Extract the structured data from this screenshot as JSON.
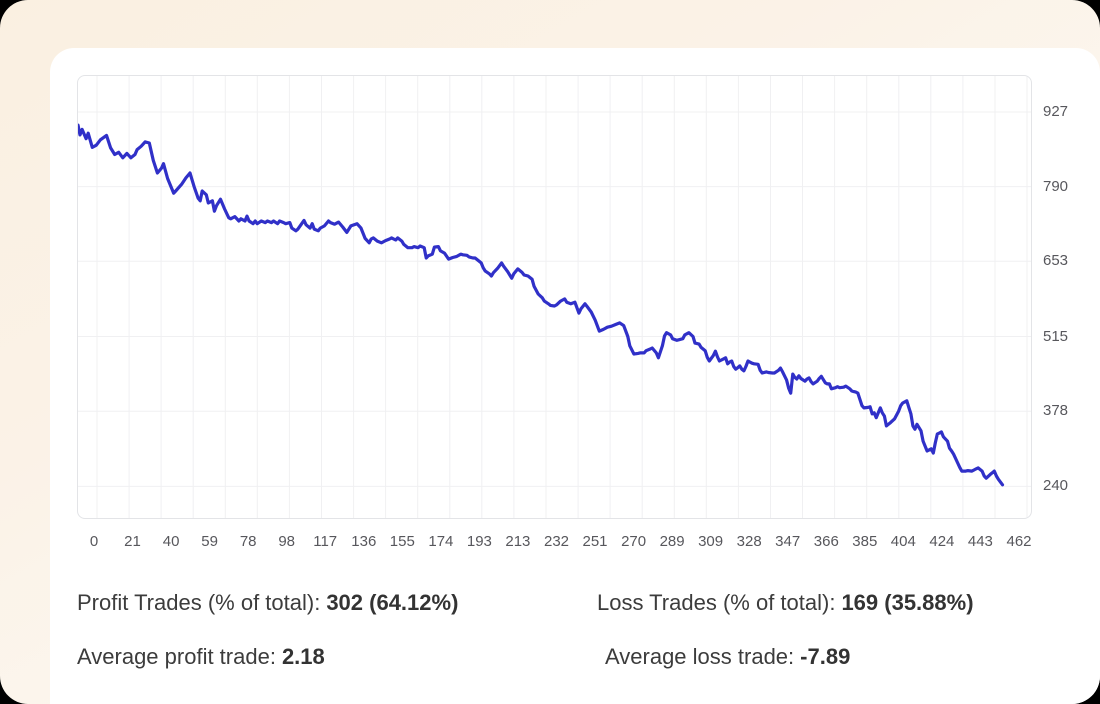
{
  "colors": {
    "line": "#3030c8",
    "grid": "#f0f0f2",
    "panel_border": "#e3e4e7",
    "tick_text": "#57575c",
    "stat_text": "#3c3c3c",
    "card": "#ffffff",
    "background_top": "#faf0e1",
    "background_bottom": "#fbfbf9"
  },
  "chart_data": {
    "type": "line",
    "title": "",
    "xlabel": "",
    "ylabel": "",
    "legend": "none",
    "grid": true,
    "y_labels_position": "right",
    "x_tick_labels": [
      "0",
      "21",
      "40",
      "59",
      "78",
      "98",
      "117",
      "136",
      "155",
      "174",
      "193",
      "213",
      "232",
      "251",
      "270",
      "289",
      "309",
      "328",
      "347",
      "366",
      "385",
      "404",
      "424",
      "443",
      "462"
    ],
    "y_tick_labels": [
      "927",
      "790",
      "653",
      "515",
      "378",
      "240"
    ],
    "y_tick_values": [
      927,
      790,
      653,
      515,
      378,
      240
    ],
    "axis": {
      "x_min": 0,
      "x_max": 468,
      "y_min": 182,
      "y_max": 993
    },
    "series": [
      {
        "name": "cumulative-balance",
        "color": "#3030c8",
        "points": [
          [
            0,
            903
          ],
          [
            1,
            885
          ],
          [
            2,
            895
          ],
          [
            4,
            878
          ],
          [
            5,
            888
          ],
          [
            7,
            862
          ],
          [
            9,
            866
          ],
          [
            11,
            876
          ],
          [
            14,
            884
          ],
          [
            16,
            861
          ],
          [
            18,
            849
          ],
          [
            20,
            853
          ],
          [
            22,
            843
          ],
          [
            24,
            851
          ],
          [
            26,
            843
          ],
          [
            28,
            849
          ],
          [
            29,
            858
          ],
          [
            31,
            864
          ],
          [
            33,
            872
          ],
          [
            35,
            870
          ],
          [
            37,
            838
          ],
          [
            39,
            815
          ],
          [
            41,
            824
          ],
          [
            42,
            832
          ],
          [
            44,
            805
          ],
          [
            47,
            778
          ],
          [
            48,
            782
          ],
          [
            51,
            795
          ],
          [
            53,
            806
          ],
          [
            55,
            815
          ],
          [
            57,
            790
          ],
          [
            59,
            769
          ],
          [
            60,
            764
          ],
          [
            61,
            782
          ],
          [
            63,
            775
          ],
          [
            64,
            760
          ],
          [
            66,
            764
          ],
          [
            67,
            745
          ],
          [
            68,
            755
          ],
          [
            70,
            767
          ],
          [
            72,
            749
          ],
          [
            74,
            733
          ],
          [
            75,
            731
          ],
          [
            77,
            735
          ],
          [
            79,
            727
          ],
          [
            80,
            731
          ],
          [
            82,
            727
          ],
          [
            83,
            736
          ],
          [
            84,
            727
          ],
          [
            86,
            722
          ],
          [
            87,
            727
          ],
          [
            88,
            722
          ],
          [
            90,
            727
          ],
          [
            92,
            724
          ],
          [
            93,
            727
          ],
          [
            95,
            724
          ],
          [
            96,
            727
          ],
          [
            98,
            722
          ],
          [
            99,
            727
          ],
          [
            101,
            724
          ],
          [
            102,
            722
          ],
          [
            104,
            724
          ],
          [
            105,
            714
          ],
          [
            107,
            709
          ],
          [
            108,
            712
          ],
          [
            111,
            728
          ],
          [
            112,
            720
          ],
          [
            114,
            714
          ],
          [
            115,
            722
          ],
          [
            116,
            712
          ],
          [
            118,
            709
          ],
          [
            119,
            714
          ],
          [
            121,
            718
          ],
          [
            123,
            727
          ],
          [
            124,
            724
          ],
          [
            126,
            721
          ],
          [
            128,
            725
          ],
          [
            130,
            716
          ],
          [
            132,
            706
          ],
          [
            134,
            718
          ],
          [
            137,
            722
          ],
          [
            139,
            714
          ],
          [
            141,
            695
          ],
          [
            143,
            687
          ],
          [
            144,
            694
          ],
          [
            145,
            696
          ],
          [
            147,
            690
          ],
          [
            149,
            687
          ],
          [
            151,
            691
          ],
          [
            153,
            694
          ],
          [
            154,
            696
          ],
          [
            156,
            692
          ],
          [
            157,
            696
          ],
          [
            159,
            690
          ],
          [
            160,
            684
          ],
          [
            162,
            678
          ],
          [
            164,
            678
          ],
          [
            165,
            680
          ],
          [
            167,
            678
          ],
          [
            168,
            681
          ],
          [
            170,
            678
          ],
          [
            171,
            659
          ],
          [
            172,
            663
          ],
          [
            174,
            666
          ],
          [
            175,
            679
          ],
          [
            177,
            680
          ],
          [
            178,
            672
          ],
          [
            180,
            668
          ],
          [
            182,
            657
          ],
          [
            184,
            660
          ],
          [
            186,
            662
          ],
          [
            188,
            666
          ],
          [
            189,
            665
          ],
          [
            191,
            664
          ],
          [
            192,
            661
          ],
          [
            194,
            659
          ],
          [
            195,
            659
          ],
          [
            197,
            653
          ],
          [
            198,
            650
          ],
          [
            199,
            641
          ],
          [
            200,
            635
          ],
          [
            202,
            630
          ],
          [
            203,
            626
          ],
          [
            204,
            632
          ],
          [
            206,
            640
          ],
          [
            208,
            650
          ],
          [
            209,
            644
          ],
          [
            211,
            634
          ],
          [
            213,
            622
          ],
          [
            214,
            630
          ],
          [
            216,
            639
          ],
          [
            218,
            633
          ],
          [
            219,
            628
          ],
          [
            221,
            626
          ],
          [
            223,
            620
          ],
          [
            224,
            607
          ],
          [
            226,
            593
          ],
          [
            228,
            586
          ],
          [
            229,
            580
          ],
          [
            231,
            575
          ],
          [
            232,
            572
          ],
          [
            234,
            571
          ],
          [
            235,
            573
          ],
          [
            237,
            580
          ],
          [
            239,
            584
          ],
          [
            240,
            578
          ],
          [
            242,
            575
          ],
          [
            244,
            578
          ],
          [
            246,
            558
          ],
          [
            247,
            566
          ],
          [
            249,
            575
          ],
          [
            250,
            570
          ],
          [
            252,
            560
          ],
          [
            254,
            545
          ],
          [
            256,
            525
          ],
          [
            258,
            528
          ],
          [
            260,
            532
          ],
          [
            262,
            534
          ],
          [
            264,
            537
          ],
          [
            266,
            540
          ],
          [
            268,
            535
          ],
          [
            270,
            515
          ],
          [
            271,
            498
          ],
          [
            273,
            483
          ],
          [
            275,
            484
          ],
          [
            276,
            485
          ],
          [
            278,
            485
          ],
          [
            279,
            489
          ],
          [
            281,
            492
          ],
          [
            282,
            494
          ],
          [
            284,
            485
          ],
          [
            285,
            476
          ],
          [
            287,
            498
          ],
          [
            288,
            516
          ],
          [
            289,
            522
          ],
          [
            291,
            518
          ],
          [
            292,
            511
          ],
          [
            294,
            508
          ],
          [
            295,
            509
          ],
          [
            297,
            511
          ],
          [
            298,
            518
          ],
          [
            300,
            522
          ],
          [
            302,
            515
          ],
          [
            303,
            503
          ],
          [
            305,
            501
          ],
          [
            306,
            495
          ],
          [
            308,
            489
          ],
          [
            309,
            477
          ],
          [
            310,
            470
          ],
          [
            312,
            480
          ],
          [
            313,
            488
          ],
          [
            314,
            478
          ],
          [
            315,
            470
          ],
          [
            317,
            474
          ],
          [
            318,
            476
          ],
          [
            319,
            465
          ],
          [
            320,
            468
          ],
          [
            321,
            470
          ],
          [
            322,
            460
          ],
          [
            323,
            455
          ],
          [
            324,
            458
          ],
          [
            325,
            461
          ],
          [
            326,
            455
          ],
          [
            327,
            452
          ],
          [
            328,
            460
          ],
          [
            329,
            470
          ],
          [
            330,
            468
          ],
          [
            331,
            466
          ],
          [
            332,
            465
          ],
          [
            334,
            464
          ],
          [
            335,
            453
          ],
          [
            336,
            448
          ],
          [
            338,
            450
          ],
          [
            339,
            449
          ],
          [
            341,
            448
          ],
          [
            342,
            448
          ],
          [
            344,
            453
          ],
          [
            345,
            457
          ],
          [
            346,
            450
          ],
          [
            348,
            435
          ],
          [
            349,
            420
          ],
          [
            350,
            411
          ],
          [
            351,
            446
          ],
          [
            352,
            440
          ],
          [
            353,
            437
          ],
          [
            354,
            443
          ],
          [
            355,
            438
          ],
          [
            357,
            433
          ],
          [
            358,
            437
          ],
          [
            359,
            439
          ],
          [
            360,
            432
          ],
          [
            361,
            428
          ],
          [
            363,
            433
          ],
          [
            364,
            438
          ],
          [
            365,
            442
          ],
          [
            367,
            430
          ],
          [
            368,
            428
          ],
          [
            369,
            428
          ],
          [
            370,
            419
          ],
          [
            372,
            421
          ],
          [
            373,
            423
          ],
          [
            374,
            421
          ],
          [
            376,
            422
          ],
          [
            377,
            424
          ],
          [
            379,
            419
          ],
          [
            380,
            415
          ],
          [
            381,
            414
          ],
          [
            382,
            413
          ],
          [
            383,
            411
          ],
          [
            385,
            388
          ],
          [
            386,
            384
          ],
          [
            388,
            385
          ],
          [
            389,
            386
          ],
          [
            390,
            373
          ],
          [
            391,
            375
          ],
          [
            392,
            366
          ],
          [
            394,
            384
          ],
          [
            395,
            375
          ],
          [
            396,
            369
          ],
          [
            397,
            351
          ],
          [
            399,
            357
          ],
          [
            401,
            364
          ],
          [
            402,
            371
          ],
          [
            403,
            378
          ],
          [
            404,
            388
          ],
          [
            405,
            393
          ],
          [
            407,
            397
          ],
          [
            408,
            385
          ],
          [
            409,
            373
          ],
          [
            410,
            351
          ],
          [
            411,
            345
          ],
          [
            412,
            354
          ],
          [
            414,
            342
          ],
          [
            415,
            323
          ],
          [
            416,
            314
          ],
          [
            417,
            305
          ],
          [
            419,
            309
          ],
          [
            420,
            301
          ],
          [
            421,
            320
          ],
          [
            422,
            336
          ],
          [
            423,
            338
          ],
          [
            424,
            340
          ],
          [
            425,
            331
          ],
          [
            427,
            323
          ],
          [
            428,
            310
          ],
          [
            429,
            305
          ],
          [
            430,
            299
          ],
          [
            432,
            283
          ],
          [
            433,
            275
          ],
          [
            434,
            268
          ],
          [
            436,
            268
          ],
          [
            437,
            269
          ],
          [
            439,
            268
          ],
          [
            440,
            270
          ],
          [
            441,
            272
          ],
          [
            442,
            274
          ],
          [
            444,
            268
          ],
          [
            445,
            259
          ],
          [
            446,
            255
          ],
          [
            448,
            262
          ],
          [
            449,
            265
          ],
          [
            450,
            268
          ],
          [
            451,
            259
          ],
          [
            452,
            253
          ],
          [
            454,
            243
          ]
        ]
      }
    ]
  },
  "stats": {
    "profit_label": "Profit Trades (% of total):",
    "profit_value": "302 (64.12%)",
    "loss_label": "Loss Trades (% of total):",
    "loss_value": "169 (35.88%)",
    "avg_profit_label": "Average profit trade:",
    "avg_profit_value": "2.18",
    "avg_loss_label": "Average loss trade:",
    "avg_loss_value": "-7.89"
  }
}
